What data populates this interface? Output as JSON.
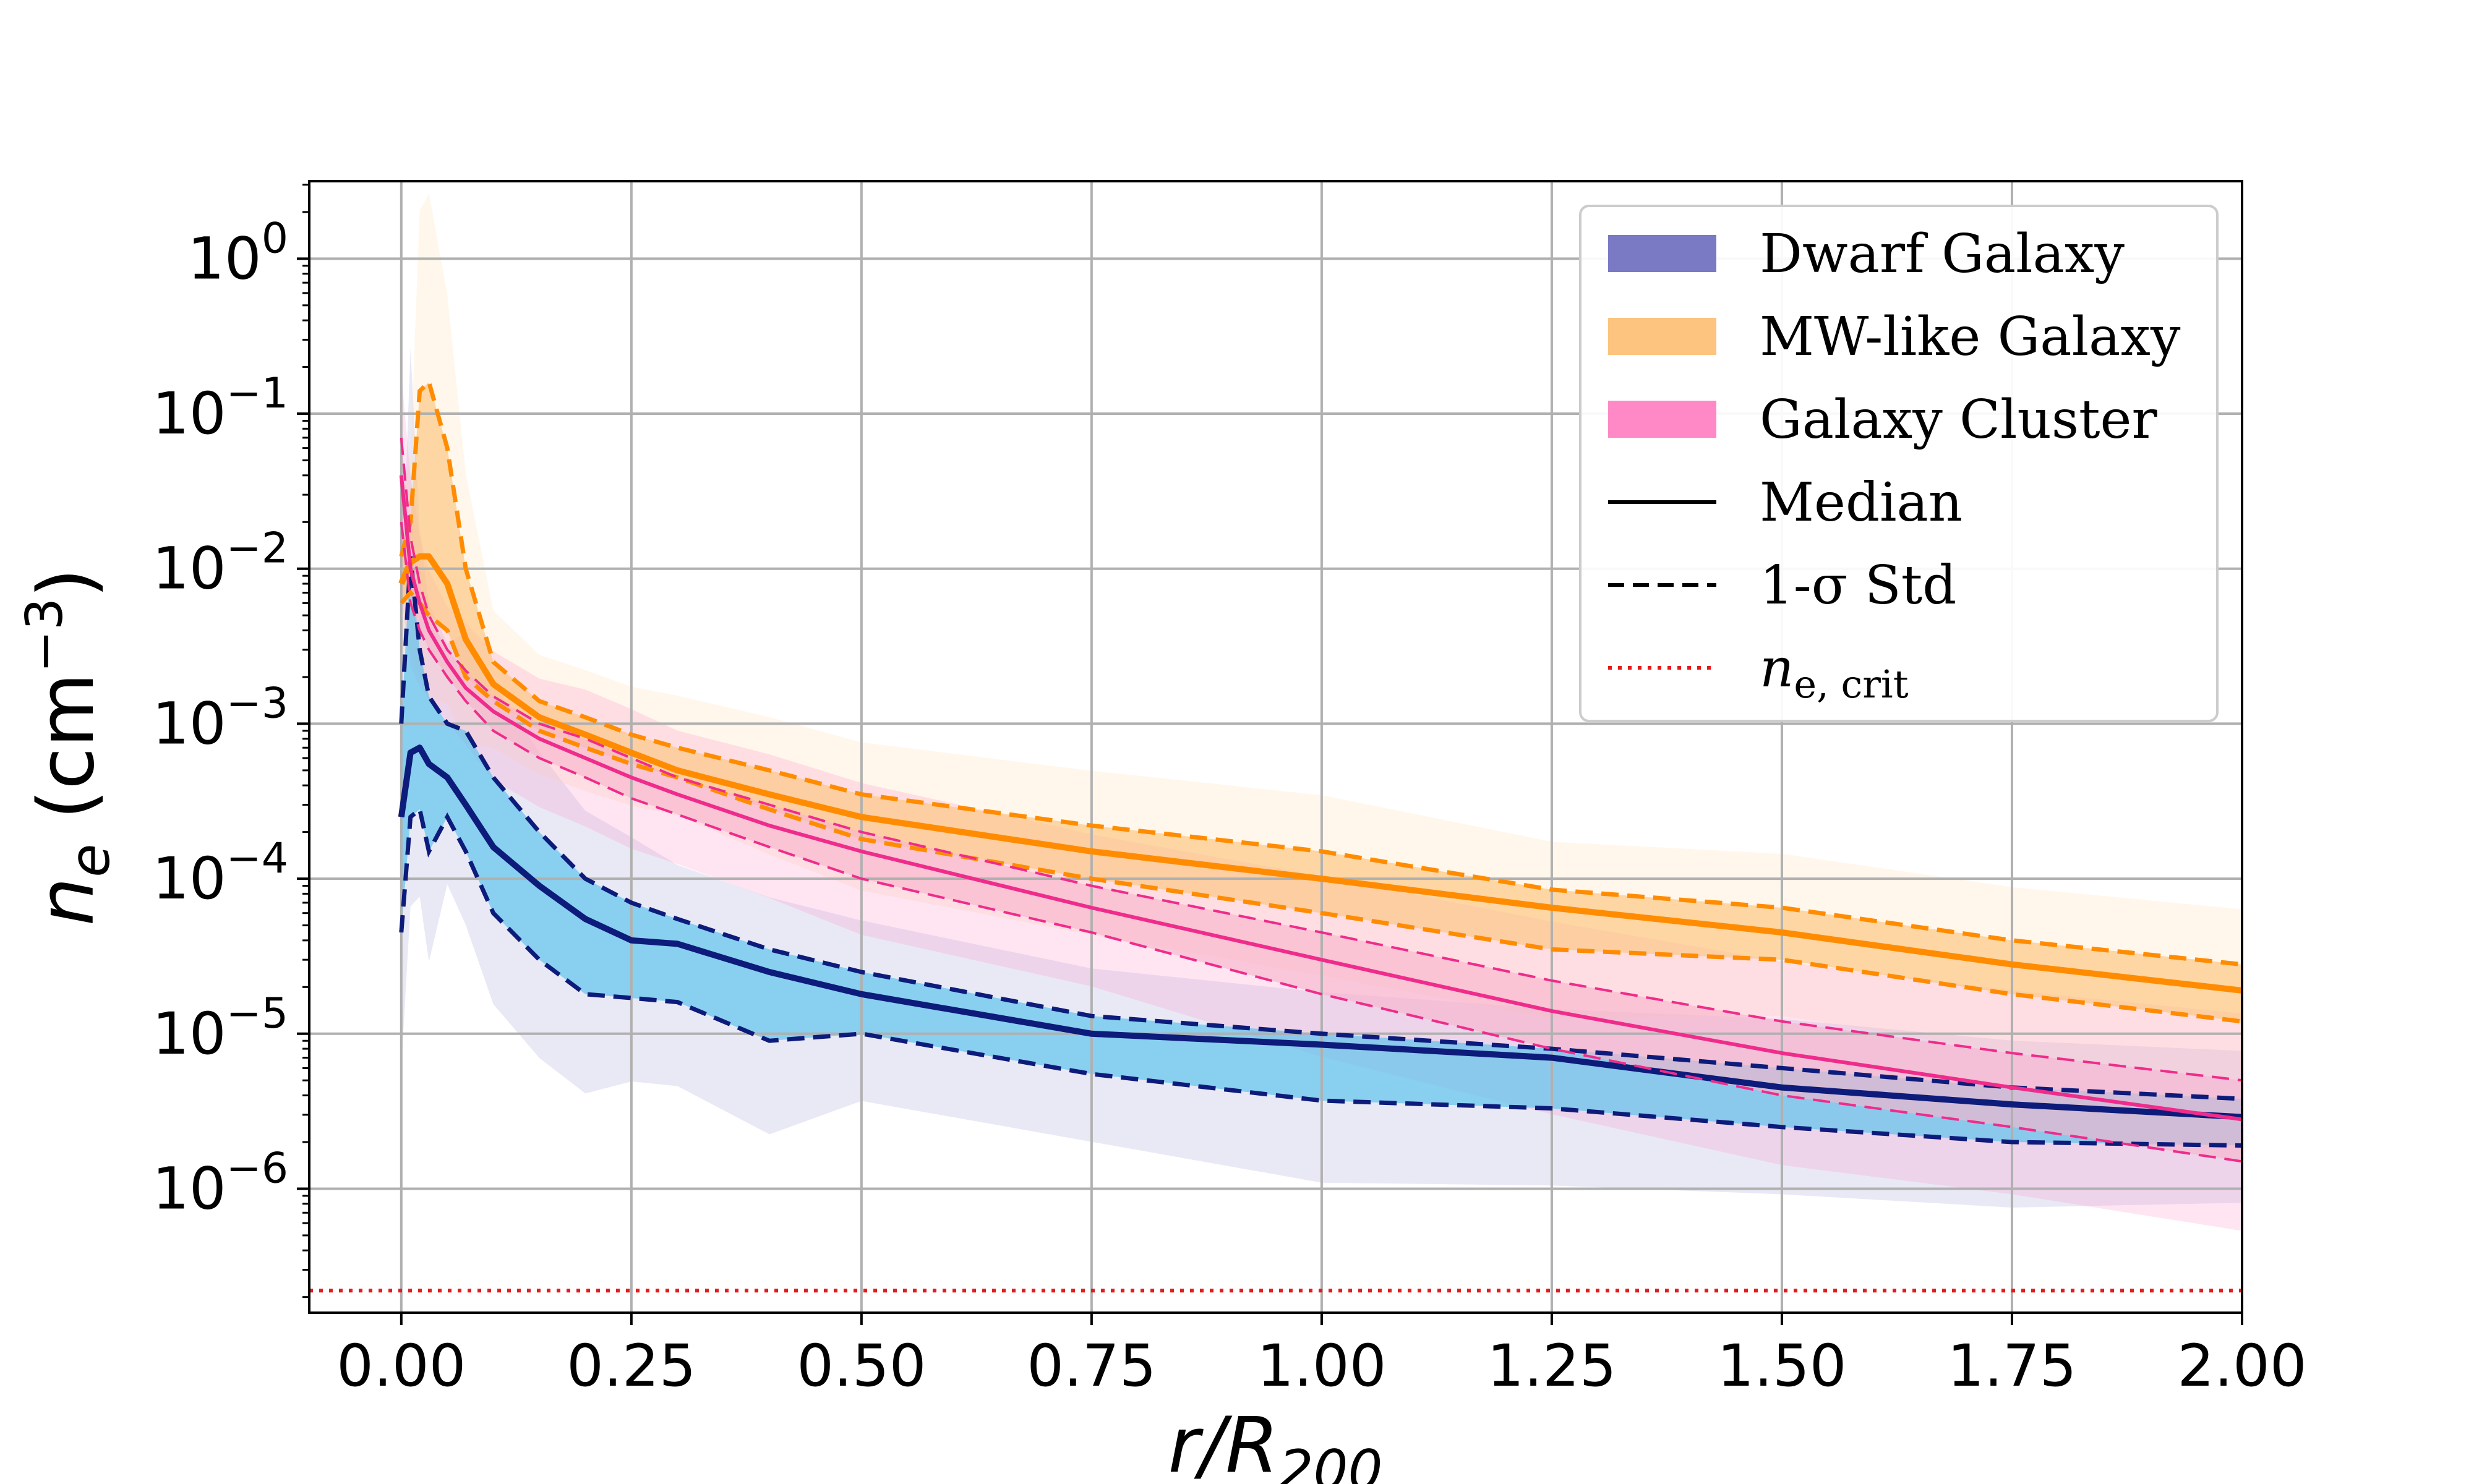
{
  "chart_data": {
    "type": "line",
    "title": "",
    "xlabel": {
      "main": "r/R",
      "sub": "200"
    },
    "ylabel": {
      "main": "n",
      "sub": "e",
      "unit_pre": " (cm",
      "unit_sup": "−3",
      "unit_post": ")"
    },
    "xlim": [
      -0.1,
      2.0
    ],
    "ylim_log10": [
      -6.8,
      0.5
    ],
    "yscale": "log",
    "grid": true,
    "x_ticks": [
      0.0,
      0.25,
      0.5,
      0.75,
      1.0,
      1.25,
      1.5,
      1.75,
      2.0
    ],
    "x_tick_labels": [
      "0.00",
      "0.25",
      "0.50",
      "0.75",
      "1.00",
      "1.25",
      "1.50",
      "1.75",
      "2.00"
    ],
    "y_ticks": [
      {
        "base": "10",
        "exp": "0",
        "value": 1
      },
      {
        "base": "10",
        "exp": "−1",
        "value": 0.1
      },
      {
        "base": "10",
        "exp": "−2",
        "value": 0.01
      },
      {
        "base": "10",
        "exp": "−3",
        "value": 0.001
      },
      {
        "base": "10",
        "exp": "−4",
        "value": 0.0001
      },
      {
        "base": "10",
        "exp": "−5",
        "value": 1e-05
      },
      {
        "base": "10",
        "exp": "−6",
        "value": 1e-06
      }
    ],
    "legend": {
      "placement": "top-right",
      "entries": [
        {
          "label": "Dwarf Galaxy",
          "kind": "patch",
          "color": "#7a7ac4"
        },
        {
          "label": "MW-like Galaxy",
          "kind": "patch",
          "color": "#fcc47e"
        },
        {
          "label": "Galaxy Cluster",
          "kind": "patch",
          "color": "#ff88c6"
        },
        {
          "label": "Median",
          "kind": "solid",
          "color": "#000000"
        },
        {
          "label": "1-σ Std",
          "kind": "dashed",
          "color": "#000000"
        },
        {
          "label": "n",
          "sub": "e, crit",
          "kind": "dotted",
          "color": "#e41a1c"
        }
      ]
    },
    "reference_line": {
      "name": "n_e,crit",
      "value": 2.2e-07,
      "color": "#e41a1c",
      "style": "dotted"
    },
    "series": [
      {
        "name": "Dwarf Galaxy",
        "line_color": "#0d1b7a",
        "band_color": "#55c2ec",
        "halo_color": "#9a9ad8",
        "x": [
          0.0,
          0.01,
          0.02,
          0.03,
          0.05,
          0.07,
          0.1,
          0.15,
          0.2,
          0.25,
          0.3,
          0.4,
          0.5,
          0.75,
          1.0,
          1.25,
          1.5,
          1.75,
          2.0
        ],
        "median": [
          0.00025,
          0.00065,
          0.0007,
          0.00055,
          0.00045,
          0.0003,
          0.00016,
          9e-05,
          5.5e-05,
          4e-05,
          3.8e-05,
          2.5e-05,
          1.8e-05,
          1e-05,
          8.5e-06,
          7e-06,
          4.5e-06,
          3.5e-06,
          2.9e-06
        ],
        "upper": [
          0.001,
          0.012,
          0.003,
          0.0015,
          0.001,
          0.0009,
          0.00045,
          0.0002,
          0.0001,
          7e-05,
          5.5e-05,
          3.5e-05,
          2.5e-05,
          1.3e-05,
          1e-05,
          8e-06,
          6e-06,
          4.5e-06,
          3.8e-06
        ],
        "lower": [
          4.5e-05,
          0.00025,
          0.00028,
          0.00015,
          0.00025,
          0.00015,
          6e-05,
          3e-05,
          1.8e-05,
          1.7e-05,
          1.6e-05,
          9e-06,
          1e-05,
          5.5e-06,
          3.7e-06,
          3.3e-06,
          2.5e-06,
          2e-06,
          1.9e-06
        ]
      },
      {
        "name": "MW-like Galaxy",
        "line_color": "#ff8c00",
        "band_color": "#fcc47e",
        "halo_color": "#ffd9a8",
        "x": [
          0.0,
          0.01,
          0.02,
          0.03,
          0.05,
          0.07,
          0.1,
          0.15,
          0.2,
          0.25,
          0.3,
          0.4,
          0.5,
          0.75,
          1.0,
          1.25,
          1.5,
          1.75,
          2.0
        ],
        "median": [
          0.008,
          0.011,
          0.012,
          0.012,
          0.008,
          0.0035,
          0.0018,
          0.0011,
          0.00085,
          0.00065,
          0.0005,
          0.00035,
          0.00025,
          0.00015,
          0.0001,
          6.5e-05,
          4.5e-05,
          2.8e-05,
          1.9e-05
        ],
        "upper": [
          0.012,
          0.02,
          0.14,
          0.16,
          0.06,
          0.01,
          0.0025,
          0.0014,
          0.0011,
          0.00085,
          0.0007,
          0.0005,
          0.00035,
          0.00022,
          0.00015,
          8.5e-05,
          6.5e-05,
          4e-05,
          2.8e-05
        ],
        "lower": [
          0.006,
          0.007,
          0.006,
          0.005,
          0.004,
          0.002,
          0.0014,
          0.0009,
          0.0007,
          0.00055,
          0.00045,
          0.00028,
          0.00018,
          0.0001,
          6e-05,
          3.5e-05,
          3e-05,
          1.8e-05,
          1.2e-05
        ]
      },
      {
        "name": "Galaxy Cluster",
        "line_color": "#ef2c8b",
        "band_color": "#f7b6cd",
        "halo_color": "#ff88c6",
        "x": [
          0.0,
          0.01,
          0.02,
          0.03,
          0.05,
          0.07,
          0.1,
          0.15,
          0.2,
          0.25,
          0.3,
          0.4,
          0.5,
          0.75,
          1.0,
          1.25,
          1.5,
          1.75,
          2.0
        ],
        "median": [
          0.04,
          0.01,
          0.006,
          0.004,
          0.0025,
          0.0017,
          0.0012,
          0.0008,
          0.0006,
          0.00045,
          0.00035,
          0.00022,
          0.00015,
          6.5e-05,
          3e-05,
          1.4e-05,
          7.5e-06,
          4.5e-06,
          2.8e-06
        ],
        "upper": [
          0.07,
          0.016,
          0.008,
          0.005,
          0.003,
          0.0022,
          0.0015,
          0.001,
          0.0008,
          0.0006,
          0.00045,
          0.0003,
          0.0002,
          9e-05,
          4.5e-05,
          2.2e-05,
          1.2e-05,
          7.5e-06,
          5e-06
        ],
        "lower": [
          0.02,
          0.006,
          0.004,
          0.003,
          0.002,
          0.0014,
          0.0009,
          0.0006,
          0.00045,
          0.00033,
          0.00026,
          0.00016,
          0.0001,
          4.5e-05,
          1.8e-05,
          8e-06,
          4e-06,
          2.5e-06,
          1.5e-06
        ]
      }
    ]
  }
}
